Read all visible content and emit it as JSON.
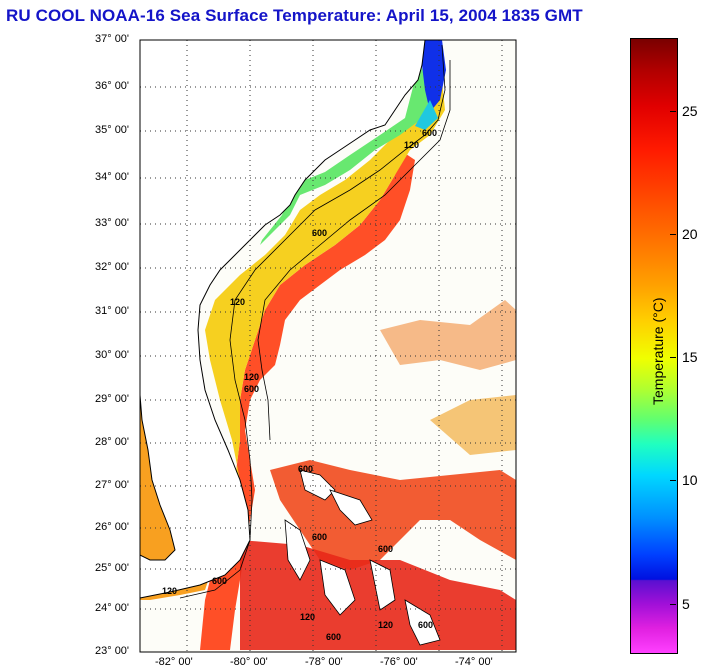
{
  "title": "RU COOL  NOAA-16  Sea Surface Temperature:  April 15, 2004 1835 GMT",
  "map": {
    "lat_ticks": [
      "37° 00'",
      "36° 00'",
      "35° 00'",
      "34° 00'",
      "33° 00'",
      "32° 00'",
      "31° 00'",
      "30° 00'",
      "29° 00'",
      "28° 00'",
      "27° 00'",
      "26° 00'",
      "25° 00'",
      "24° 00'",
      "23° 00'"
    ],
    "lon_ticks": [
      "-82° 00'",
      "-80° 00'",
      "-78° 00'",
      "-76° 00'",
      "-74° 00'"
    ],
    "isobath_labels": [
      "120",
      "600",
      "600",
      "120",
      "600",
      "120",
      "600",
      "120",
      "600",
      "600",
      "600",
      "120",
      "600",
      "120",
      "600"
    ]
  },
  "colorbar": {
    "label": "Temperature (°C)",
    "ticks": [
      "25",
      "20",
      "15",
      "10",
      "5"
    ],
    "colors": {
      "cold": "#0010e0",
      "warm": "#ff2000",
      "hot": "#7a0000"
    }
  }
}
